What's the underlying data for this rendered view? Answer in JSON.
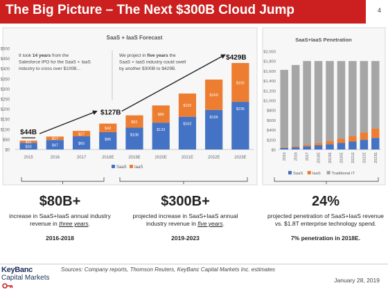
{
  "header": {
    "title": "The Big Picture – The Next $300B Cloud Jump",
    "page_number": "4"
  },
  "colors": {
    "saas": "#4472c4",
    "iaas": "#ed7d31",
    "traditional_it": "#a6a6a6",
    "brand_red": "#cc1f1f"
  },
  "chart_data": [
    {
      "type": "bar",
      "stacked": true,
      "title": "SaaS + IaaS Forecast",
      "categories": [
        "2015",
        "2016",
        "2017",
        "2018E",
        "2019E",
        "2020E",
        "2021E",
        "2022E",
        "2023E"
      ],
      "series": [
        {
          "name": "SaaS",
          "values": [
            33,
            47,
            65,
            86,
            108,
            133,
            162,
            196,
            236
          ],
          "labels": [
            "$33",
            "$47",
            "$65",
            "$86",
            "$108",
            "$133",
            "$162",
            "$196",
            "$236"
          ]
        },
        {
          "name": "IaaS",
          "values": [
            11,
            17,
            27,
            42,
            61,
            85,
            115,
            150,
            192
          ],
          "labels": [
            "$11",
            "$17",
            "$27",
            "$42",
            "$61",
            "$85",
            "$115",
            "$150",
            "$192"
          ]
        }
      ],
      "ylim": [
        0,
        500
      ],
      "yticks": [
        "$0",
        "$50",
        "$100",
        "$150",
        "$200",
        "$250",
        "$300",
        "$350",
        "$400",
        "$450",
        "$500"
      ],
      "total_callouts": [
        {
          "category": "2015",
          "label": "$44B"
        },
        {
          "category": "2018E",
          "label": "$127B"
        },
        {
          "category": "2023E",
          "label": "$429B"
        }
      ],
      "annotations": [
        {
          "text_parts": [
            "It took ",
            "14 years",
            " from the Salesforce IPO for the SaaS + IaaS industry to cross over $100B..."
          ]
        },
        {
          "text_parts": [
            "We project in ",
            "five years",
            " the SaaS + IaaS industry could swell by another $300B to $429B."
          ]
        }
      ],
      "legend": [
        "SaaS",
        "IaaS"
      ],
      "legend_position": "bottom"
    },
    {
      "type": "bar",
      "stacked": true,
      "title": "SaaS+IaaS Penetration",
      "categories": [
        "2015",
        "2016",
        "2017",
        "2018E",
        "2019E",
        "2020E",
        "2021E",
        "2022E",
        "2023E"
      ],
      "series": [
        {
          "name": "SaaS",
          "values": [
            33,
            47,
            65,
            86,
            108,
            133,
            162,
            196,
            236
          ]
        },
        {
          "name": "IaaS",
          "values": [
            11,
            17,
            27,
            42,
            61,
            85,
            115,
            150,
            192
          ]
        },
        {
          "name": "Traditional IT",
          "values": [
            1576,
            1656,
            1708,
            1672,
            1631,
            1582,
            1523,
            1454,
            1372
          ]
        }
      ],
      "ylim": [
        0,
        2000
      ],
      "yticks": [
        "$0",
        "$200",
        "$400",
        "$600",
        "$800",
        "$1,000",
        "$1,200",
        "$1,400",
        "$1,600",
        "$1,800",
        "$2,000"
      ],
      "legend": [
        "SaaS",
        "IaaS",
        "Traditional IT"
      ],
      "legend_position": "bottom"
    }
  ],
  "summaries": [
    {
      "big": "$80B+",
      "desc_parts": [
        "increase in SaaS+IaaS annual industry revenue in ",
        "three years",
        "."
      ],
      "period": "2016-2018"
    },
    {
      "big": "$300B+",
      "desc_parts": [
        "projected increase in SaaS+IaaS annual industry revenue in ",
        "five years",
        "."
      ],
      "period": "2019-2023"
    },
    {
      "big": "24%",
      "desc_parts": [
        "projected penetration of SaaS+IaaS revenue vs. $1.8T enterprise technology spend.",
        "",
        ""
      ],
      "period": "7% penetration in 2018E."
    }
  ],
  "footer": {
    "logo_line1": "KeyBanc",
    "logo_line2": "Capital Markets",
    "sources": "Sources: Company reports, Thomson Reuters, KeyBanc Capital Markets Inc. estimates",
    "date": "January 28, 2019"
  }
}
